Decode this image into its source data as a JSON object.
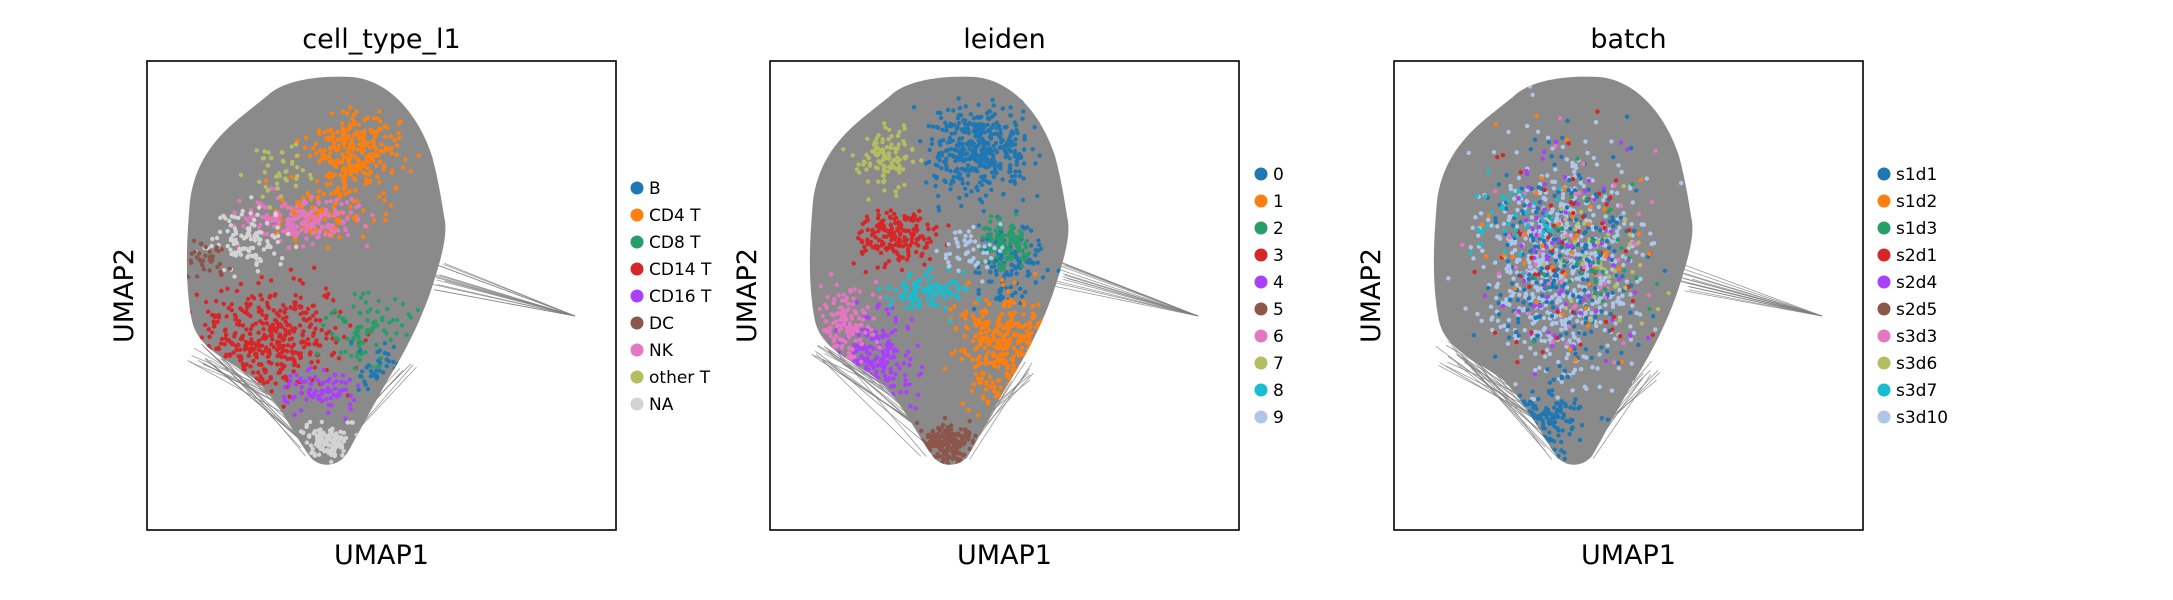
{
  "chart_data": [
    {
      "type": "scatter",
      "title": "cell_type_l1",
      "xlabel": "UMAP1",
      "ylabel": "UMAP2",
      "legend_position": "right",
      "grid": false,
      "legend": [
        {
          "label": "B",
          "color": "#1f77b4"
        },
        {
          "label": "CD4 T",
          "color": "#ff7f0e"
        },
        {
          "label": "CD8 T",
          "color": "#279e68"
        },
        {
          "label": "CD14 T",
          "color": "#d62728"
        },
        {
          "label": "CD16 T",
          "color": "#aa40fc"
        },
        {
          "label": "DC",
          "color": "#8c564b"
        },
        {
          "label": "NK",
          "color": "#e377c2"
        },
        {
          "label": "other T",
          "color": "#b5bd61"
        },
        {
          "label": "NA",
          "color": "#d3d3d3"
        }
      ]
    },
    {
      "type": "scatter",
      "title": "leiden",
      "xlabel": "UMAP1",
      "ylabel": "UMAP2",
      "legend_position": "right",
      "grid": false,
      "legend": [
        {
          "label": "0",
          "color": "#1f77b4"
        },
        {
          "label": "1",
          "color": "#ff7f0e"
        },
        {
          "label": "2",
          "color": "#279e68"
        },
        {
          "label": "3",
          "color": "#d62728"
        },
        {
          "label": "4",
          "color": "#aa40fc"
        },
        {
          "label": "5",
          "color": "#8c564b"
        },
        {
          "label": "6",
          "color": "#e377c2"
        },
        {
          "label": "7",
          "color": "#b5bd61"
        },
        {
          "label": "8",
          "color": "#17becf"
        },
        {
          "label": "9",
          "color": "#aec7e8"
        }
      ]
    },
    {
      "type": "scatter",
      "title": "batch",
      "xlabel": "UMAP1",
      "ylabel": "UMAP2",
      "legend_position": "right",
      "grid": false,
      "legend": [
        {
          "label": "s1d1",
          "color": "#1f77b4"
        },
        {
          "label": "s1d2",
          "color": "#ff7f0e"
        },
        {
          "label": "s1d3",
          "color": "#279e68"
        },
        {
          "label": "s2d1",
          "color": "#d62728"
        },
        {
          "label": "s2d4",
          "color": "#aa40fc"
        },
        {
          "label": "s2d5",
          "color": "#8c564b"
        },
        {
          "label": "s3d3",
          "color": "#e377c2"
        },
        {
          "label": "s3d6",
          "color": "#b5bd61"
        },
        {
          "label": "s3d7",
          "color": "#17becf"
        },
        {
          "label": "s3d10",
          "color": "#aec7e8"
        }
      ]
    }
  ]
}
